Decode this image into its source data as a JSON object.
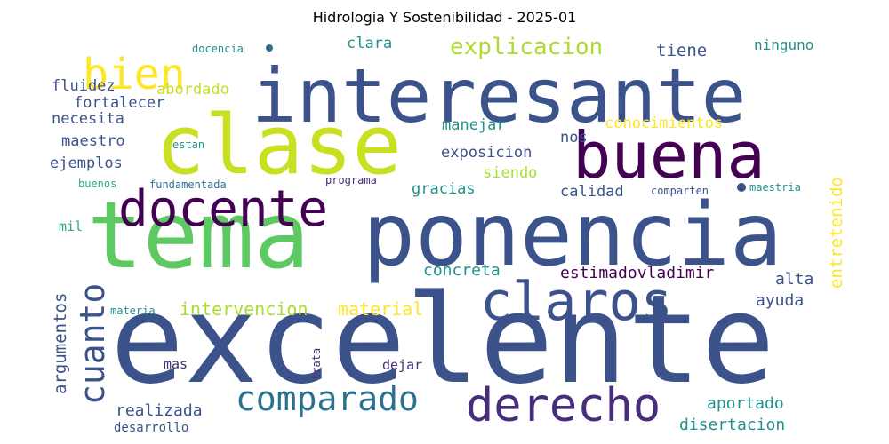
{
  "title": "Hidrologia Y Sostenibilidad - 2025-01",
  "palette": {
    "dark_purple": "#440154",
    "purple": "#472d7b",
    "indigo": "#3b528b",
    "blue": "#2c728e",
    "teal": "#21918c",
    "green_teal": "#28ae80",
    "green": "#5ec962",
    "lime": "#addc30",
    "yellow_green": "#c8e020",
    "yellow": "#fde725"
  },
  "words": [
    {
      "text": "excelente",
      "color": "#3b528b"
    },
    {
      "text": "tema",
      "color": "#5ec962"
    },
    {
      "text": "ponencia",
      "color": "#3b528b"
    },
    {
      "text": "interesante",
      "color": "#3b528b"
    },
    {
      "text": "clase",
      "color": "#c8e020"
    },
    {
      "text": "buena",
      "color": "#440154"
    },
    {
      "text": "docente",
      "color": "#440154"
    },
    {
      "text": "claros",
      "color": "#3b528b"
    },
    {
      "text": "derecho",
      "color": "#472d7b"
    },
    {
      "text": "comparado",
      "color": "#2c728e"
    },
    {
      "text": "bien",
      "color": "#fde725"
    },
    {
      "text": "cuanto",
      "color": "#3b528b"
    },
    {
      "text": "explicacion",
      "color": "#addc30"
    },
    {
      "text": "argumentos",
      "color": "#3b528b"
    },
    {
      "text": "entretenido",
      "color": "#fde725"
    },
    {
      "text": "intervencion",
      "color": "#addc30"
    },
    {
      "text": "material",
      "color": "#fde725"
    },
    {
      "text": "estimadovladimir",
      "color": "#440154"
    },
    {
      "text": "concreta",
      "color": "#21918c"
    },
    {
      "text": "alta",
      "color": "#3b528b"
    },
    {
      "text": "ayuda",
      "color": "#3b528b"
    },
    {
      "text": "aportado",
      "color": "#21918c"
    },
    {
      "text": "disertacion",
      "color": "#21918c"
    },
    {
      "text": "realizada",
      "color": "#3b528b"
    },
    {
      "text": "desarrollo",
      "color": "#3b528b"
    },
    {
      "text": "mas",
      "color": "#472d7b"
    },
    {
      "text": "dejar",
      "color": "#472d7b"
    },
    {
      "text": "trata",
      "color": "#472d7b"
    },
    {
      "text": "materia",
      "color": "#21918c"
    },
    {
      "text": "mil",
      "color": "#28ae80"
    },
    {
      "text": "calidad",
      "color": "#3b528b"
    },
    {
      "text": "comparten",
      "color": "#3b528b"
    },
    {
      "text": "maestria",
      "color": "#21918c"
    },
    {
      "text": "gracias",
      "color": "#21918c"
    },
    {
      "text": "siendo",
      "color": "#addc30"
    },
    {
      "text": "programa",
      "color": "#472d7b"
    },
    {
      "text": "fundamentada",
      "color": "#2c728e"
    },
    {
      "text": "buenos",
      "color": "#28ae80"
    },
    {
      "text": "ejemplos",
      "color": "#3b528b"
    },
    {
      "text": "estan",
      "color": "#21918c"
    },
    {
      "text": "maestro",
      "color": "#3b528b"
    },
    {
      "text": "necesita",
      "color": "#3b528b"
    },
    {
      "text": "fortalecer",
      "color": "#3b528b"
    },
    {
      "text": "fluidez",
      "color": "#3b528b"
    },
    {
      "text": "abordado",
      "color": "#c8e020"
    },
    {
      "text": "docencia",
      "color": "#21918c"
    },
    {
      "text": "clara",
      "color": "#21918c"
    },
    {
      "text": "tiene",
      "color": "#3b528b"
    },
    {
      "text": "ninguno",
      "color": "#21918c"
    },
    {
      "text": "manejar",
      "color": "#21918c"
    },
    {
      "text": "nos",
      "color": "#3b528b"
    },
    {
      "text": "exposicion",
      "color": "#3b528b"
    },
    {
      "text": "conocimientos",
      "color": "#fde725"
    }
  ],
  "dots": [
    "#2c728e",
    "#3b528b"
  ]
}
